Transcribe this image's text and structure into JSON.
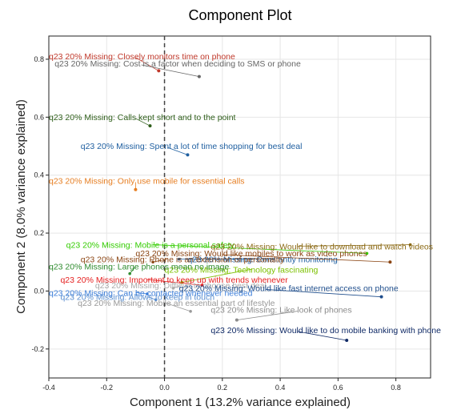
{
  "chart_data": {
    "type": "scatter",
    "title": "Component Plot",
    "xlabel": "Component 1 (13.2% variance explained)",
    "ylabel": "Component 2 (8.0% variance explained)",
    "xlim": [
      -0.4,
      0.92
    ],
    "ylim": [
      -0.3,
      0.88
    ],
    "grid": true,
    "reference_line": {
      "x": 0,
      "style": "dashed"
    },
    "xticks": [
      -0.4,
      -0.2,
      0.0,
      0.2,
      0.4,
      0.6,
      0.8
    ],
    "yticks": [
      -0.2,
      0.0,
      0.2,
      0.4,
      0.6,
      0.8
    ],
    "xtick_labels": [
      "-0.4",
      "-0.2",
      "0.0",
      "0.2",
      "0.4",
      "0.6",
      "0.8"
    ],
    "ytick_labels": [
      "-0.2",
      "0.0",
      "0.2",
      "0.4",
      "0.6",
      "0.8"
    ],
    "points": [
      {
        "label": "q23 20% Missing: Closely monitors time on phone",
        "x": -0.02,
        "y": 0.76,
        "color": "#c0392b"
      },
      {
        "label": "q23 20% Missing: Cost is a factor when deciding to SMS or phone",
        "x": 0.12,
        "y": 0.74,
        "color": "#666666"
      },
      {
        "label": "q23 20% Missing: Calls kept short and to the point",
        "x": -0.05,
        "y": 0.57,
        "color": "#2e5e1a"
      },
      {
        "label": "q23 20% Missing: Spent a lot of time shopping for best deal",
        "x": 0.08,
        "y": 0.47,
        "color": "#1f5fa0"
      },
      {
        "label": "q23 20% Missing: Only use mobile for essential calls",
        "x": -0.1,
        "y": 0.35,
        "color": "#e67e22"
      },
      {
        "label": "q23 20% Missing: Would like mobiles to work as video phones",
        "x": 0.78,
        "y": 0.1,
        "color": "#8b4513"
      },
      {
        "label": "q23 20% Missing: Would like fast internet access on phone",
        "x": 0.75,
        "y": -0.02,
        "color": "#1f4e8c"
      },
      {
        "label": "q23 20% Missing: Like look of phones",
        "x": 0.25,
        "y": -0.1,
        "color": "#8c8c8c"
      },
      {
        "label": "q23 20% Missing: Would like to do mobile banking with phone",
        "x": 0.63,
        "y": -0.17,
        "color": "#102a66"
      }
    ],
    "overlapping_labels": [
      {
        "text": "q23 20% Missing: Mobile is a personal safety",
        "color": "#33cc00"
      },
      {
        "text": "q23 20% Missing: Would like to download and watch videos",
        "color": "#8b6914"
      },
      {
        "text": "q23 20% Missing: Constantly monitoring",
        "color": "#1f5fa0"
      },
      {
        "text": "q23 20% Missing: Phone is an extension of personality",
        "color": "#8b4513"
      },
      {
        "text": "q23 20% Missing: Technology fascinating",
        "color": "#7cc000"
      },
      {
        "text": "q23 20% Missing: Large phones mean no image",
        "color": "#2e8b2e"
      },
      {
        "text": "q23 20% Missing: Important to keep up with trends whenever",
        "color": "#e52020"
      },
      {
        "text": "q23 20% Missing: Difficult to choose best deal",
        "color": "#aaaaaa"
      },
      {
        "text": "q23 20% Missing: Can be contacted whenever needed",
        "color": "#3b7dd8"
      },
      {
        "text": "q23 20% Missing: Allows to keep in touch",
        "color": "#5b8fd0"
      },
      {
        "text": "q23 20% Missing: Mobile an essential part of lifestyle",
        "color": "#999999"
      }
    ]
  }
}
